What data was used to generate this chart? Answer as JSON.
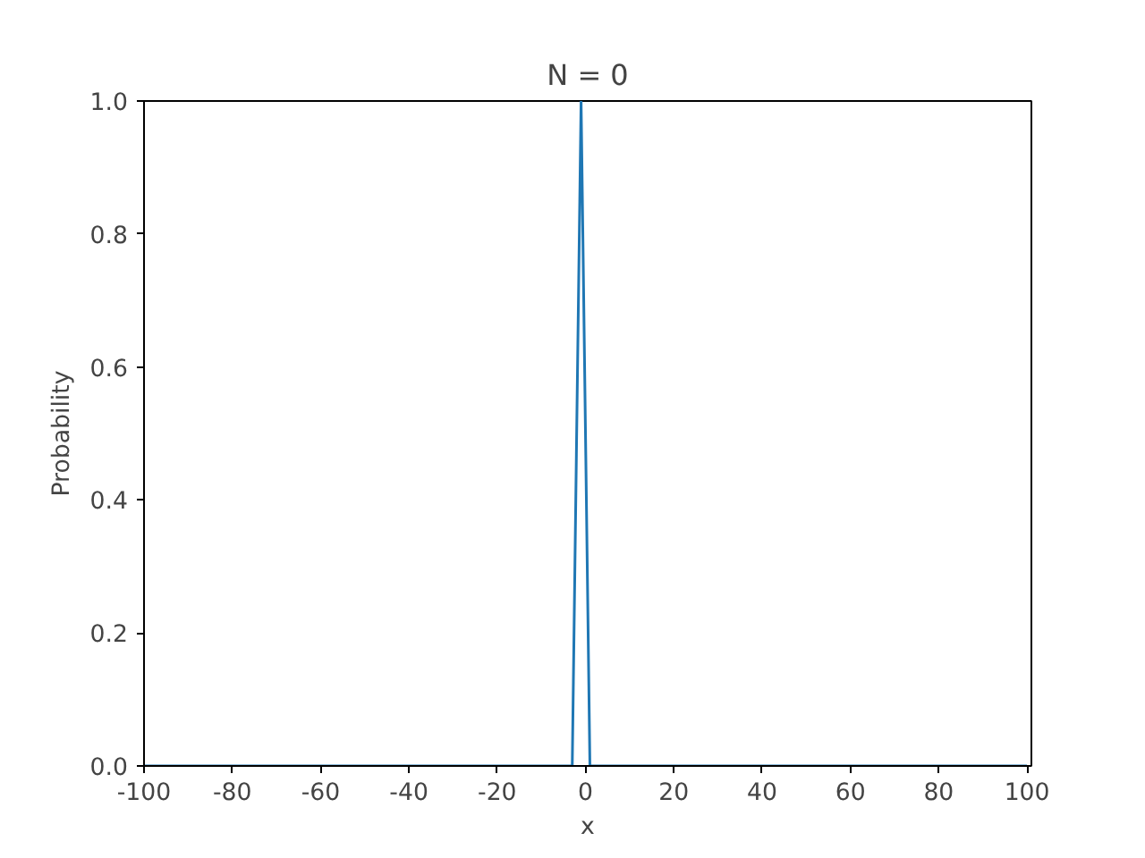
{
  "chart_data": {
    "type": "line",
    "title": "N = 0",
    "xlabel": "x",
    "ylabel": "Probability",
    "x": [
      -100,
      -3,
      -1,
      1,
      100
    ],
    "series": [
      {
        "color": "#1f77b4",
        "values": [
          0,
          0,
          1,
          0,
          0
        ]
      }
    ],
    "xlim": [
      -100,
      101
    ],
    "ylim": [
      0,
      1
    ],
    "xticks": [
      -100,
      -80,
      -60,
      -40,
      -20,
      0,
      20,
      40,
      60,
      80,
      100
    ],
    "yticks": [
      {
        "value": 0,
        "label": "0.0"
      },
      {
        "value": 0.2,
        "label": "0.2"
      },
      {
        "value": 0.4,
        "label": "0.4"
      },
      {
        "value": 0.6,
        "label": "0.6"
      },
      {
        "value": 0.8,
        "label": "0.8"
      },
      {
        "value": 1,
        "label": "1.0"
      }
    ],
    "grid": false,
    "marker": "none",
    "line_style": "solid"
  }
}
